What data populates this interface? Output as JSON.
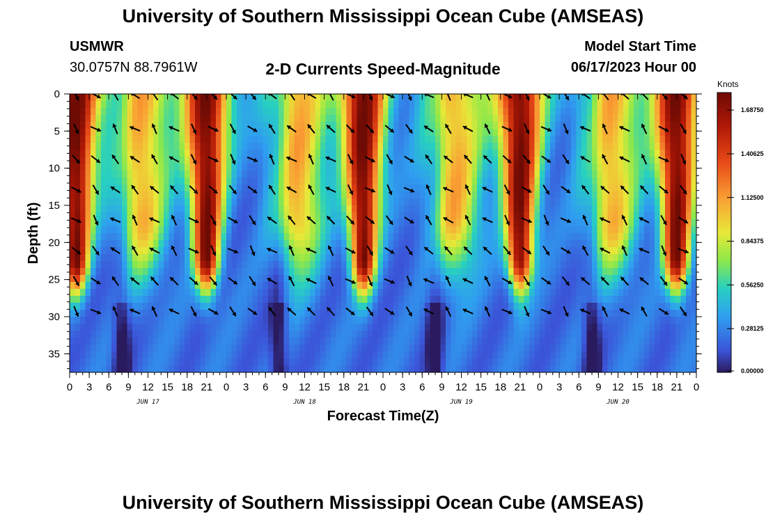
{
  "title": "University of Southern Mississippi Ocean Cube (AMSEAS)",
  "title_repeat": "University of Southern Mississippi Ocean Cube (AMSEAS)",
  "station": {
    "id": "USMWR",
    "coords": "30.0757N  88.7961W"
  },
  "model": {
    "label": "Model Start Time",
    "start": "06/17/2023 Hour 00"
  },
  "chart_data": {
    "type": "heatmap",
    "title": "2-D Currents Speed-Magnitude",
    "xlabel": "Forecast Time(Z)",
    "ylabel": "Depth (ft)",
    "x_tick_labels": [
      "0",
      "3",
      "6",
      "9",
      "12",
      "15",
      "18",
      "21",
      "0",
      "3",
      "6",
      "9",
      "12",
      "15",
      "18",
      "21",
      "0",
      "3",
      "6",
      "9",
      "12",
      "15",
      "18",
      "21",
      "0",
      "3",
      "6",
      "9",
      "12",
      "15",
      "18",
      "21",
      "0"
    ],
    "day_labels": [
      "JUN 17",
      "JUN 18",
      "JUN 19",
      "JUN 20"
    ],
    "y_ticks": [
      0,
      5,
      10,
      15,
      20,
      25,
      30,
      35
    ],
    "ylim": [
      0,
      37.5
    ],
    "xlim_hours": [
      0,
      96
    ],
    "colorbar": {
      "unit": "Knots",
      "ticks": [
        "1.68750",
        "1.40625",
        "1.12500",
        "0.84375",
        "0.56250",
        "0.28125",
        "0.00000"
      ],
      "range": [
        0,
        1.8
      ]
    },
    "strong_current_centers_hours": [
      1,
      21,
      45,
      69,
      93
    ],
    "moderate_current_centers_hours": [
      11,
      35,
      59,
      83
    ],
    "arrow_directions": "mostly NW-SE oscillating with tide; upper layer NE-ward near peaks, SW-ward at depth"
  }
}
